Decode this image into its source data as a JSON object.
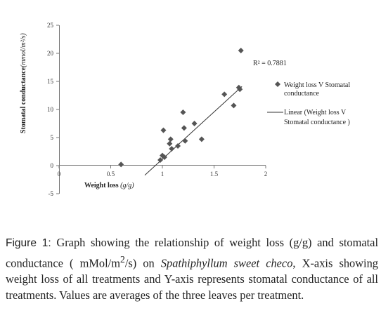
{
  "chart_data": {
    "type": "scatter",
    "title": "",
    "xlabel_main": "Weight loss ",
    "xlabel_unit": "(g/g)",
    "ylabel_main": "Stomatal conductance",
    "ylabel_unit": "(mmol/m²/s)",
    "xlim": [
      0,
      2
    ],
    "ylim": [
      -5,
      25
    ],
    "xticks": [
      0,
      0.5,
      1,
      1.5,
      2
    ],
    "xtick_labels": [
      "0",
      "0.5",
      "1",
      "1.5",
      "2"
    ],
    "yticks": [
      -5,
      0,
      5,
      10,
      15,
      20,
      25
    ],
    "ytick_labels": [
      "-5",
      "0",
      "5",
      "10",
      "15",
      "20",
      "25"
    ],
    "r_squared_label": "R² = 0.7881",
    "series": [
      {
        "name": "Weight loss V Stomatal conductance",
        "legend_lines": [
          "Weight loss V Stomatal",
          "conductance"
        ],
        "marker": "diamond",
        "color": "#555555",
        "points": [
          [
            0.6,
            0.2
          ],
          [
            0.98,
            1.0
          ],
          [
            1.0,
            1.8
          ],
          [
            1.02,
            1.5
          ],
          [
            1.01,
            6.3
          ],
          [
            1.07,
            3.9
          ],
          [
            1.08,
            4.7
          ],
          [
            1.09,
            3.0
          ],
          [
            1.15,
            3.5
          ],
          [
            1.2,
            9.5
          ],
          [
            1.21,
            6.7
          ],
          [
            1.22,
            4.4
          ],
          [
            1.31,
            7.5
          ],
          [
            1.38,
            4.7
          ],
          [
            1.6,
            12.7
          ],
          [
            1.69,
            10.7
          ],
          [
            1.74,
            13.9
          ],
          [
            1.75,
            13.6
          ],
          [
            1.76,
            20.5
          ]
        ]
      },
      {
        "name": "Linear (Weight loss V Stomatal conductance )",
        "legend_lines": [
          "Linear (Weight loss V",
          "Stomatal conductance )"
        ],
        "type": "line",
        "color": "#333333",
        "x": [
          0.83,
          1.77
        ],
        "y": [
          -1.7,
          14.1
        ]
      }
    ]
  },
  "caption": {
    "label": "Figure 1:",
    "text_1": " Graph showing the relationship of weight loss (g/g) and stomatal conductance ( mMol/m",
    "sup": "2",
    "text_2": "/s) on ",
    "species": "Spathiphyllum sweet checo",
    "text_3": ", X-axis showing weight loss of all treatments and Y-axis represents stomatal conductance of all treatments. Values are averages of the three leaves per treatment."
  }
}
